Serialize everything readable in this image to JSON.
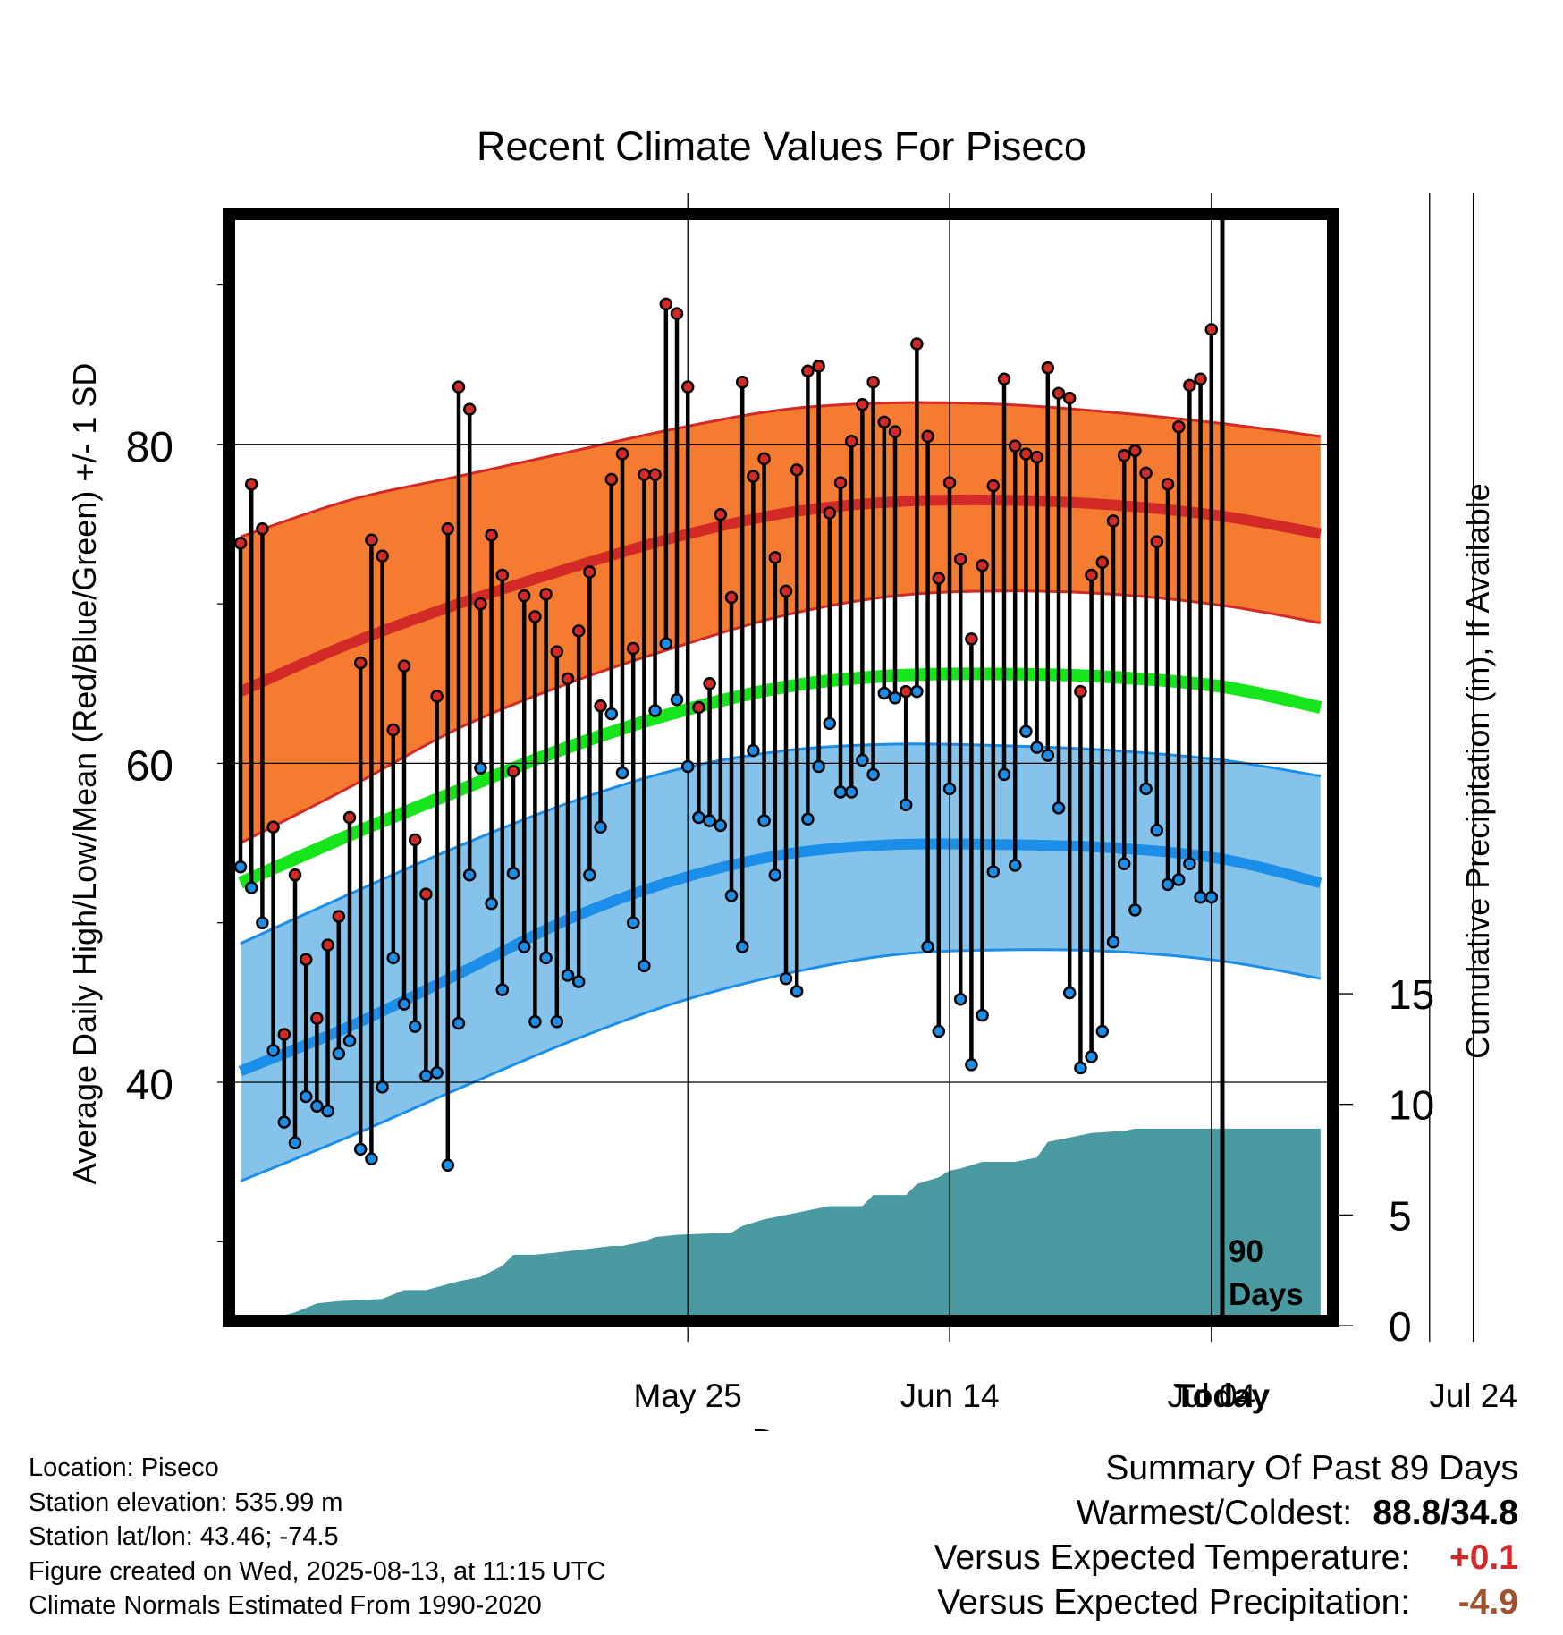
{
  "chart_data": {
    "type": "line",
    "title": "Recent Climate Values For Piseco",
    "xlabel": "Day",
    "ylabel": "Average Daily High/Low/Mean (Red/Blue/Green) +/- 1 SD",
    "y2label": "Cumulative Precipitation (in), If Available",
    "ylim": [
      26.5,
      96
    ],
    "yticks": [
      40,
      60,
      80
    ],
    "y2lim": [
      0,
      44
    ],
    "y2ticks": [
      0,
      5,
      10,
      15
    ],
    "xlim_days": [
      -90,
      9
    ],
    "x_tick_labels": [
      "May 25",
      "Jun 14",
      "Jul 04",
      "Jul 24",
      "Today"
    ],
    "today_marker_label": [
      "90",
      "Days"
    ],
    "grid": true,
    "colors": {
      "high_band": "#f47b30",
      "high_line": "#d42a27",
      "low_band": "#85c3ea",
      "low_line": "#1b8ee9",
      "mean_line": "#15e51a",
      "precip": "#4a9aa1",
      "frame": "#000000"
    },
    "normals": {
      "x_days": [
        -90,
        -80,
        -70,
        -60,
        -50,
        -40,
        -30,
        -20,
        -10,
        0,
        9
      ],
      "high_mean": [
        64.5,
        67.5,
        70.0,
        72.2,
        74.2,
        75.7,
        76.4,
        76.5,
        76.2,
        75.5,
        74.4
      ],
      "high_sd_upper": [
        74.2,
        76.5,
        78.0,
        79.5,
        81.0,
        82.2,
        82.6,
        82.5,
        82.0,
        81.3,
        80.5
      ],
      "high_sd_lower": [
        55.0,
        58.5,
        62.2,
        65.0,
        67.3,
        69.3,
        70.5,
        70.8,
        70.6,
        69.9,
        68.8
      ],
      "mean_line": [
        52.5,
        55.5,
        58.3,
        61.0,
        63.2,
        64.8,
        65.5,
        65.6,
        65.4,
        64.8,
        63.5
      ],
      "low_mean": [
        40.7,
        43.5,
        46.8,
        50.2,
        52.7,
        54.3,
        54.9,
        54.9,
        54.7,
        54.0,
        52.5
      ],
      "low_sd_upper": [
        48.7,
        51.8,
        54.8,
        57.5,
        59.6,
        60.8,
        61.2,
        61.1,
        60.8,
        60.2,
        59.2
      ],
      "low_sd_lower": [
        33.8,
        36.6,
        39.6,
        42.5,
        45.0,
        46.8,
        48.0,
        48.3,
        48.2,
        47.6,
        46.5
      ]
    },
    "daily_x_days": [
      -90,
      -89,
      -88,
      -87,
      -86,
      -85,
      -84,
      -83,
      -82,
      -81,
      -80,
      -79,
      -78,
      -77,
      -76,
      -75,
      -74,
      -73,
      -72,
      -71,
      -70,
      -69,
      -68,
      -67,
      -66,
      -65,
      -64,
      -63,
      -62,
      -61,
      -60,
      -59,
      -58,
      -57,
      -56,
      -55,
      -54,
      -53,
      -52,
      -51,
      -50,
      -49,
      -48,
      -47,
      -46,
      -45,
      -44,
      -43,
      -42,
      -41,
      -40,
      -39,
      -38,
      -37,
      -36,
      -35,
      -34,
      -33,
      -32,
      -31,
      -30,
      -29,
      -28,
      -27,
      -26,
      -25,
      -24,
      -23,
      -22,
      -21,
      -20,
      -19,
      -18,
      -17,
      -16,
      -15,
      -14,
      -13,
      -12,
      -11,
      -10,
      -9,
      -8,
      -7,
      -6,
      -5,
      -4,
      -3,
      -2,
      -1
    ],
    "daily_high": [
      73.8,
      77.5,
      74.7,
      56.0,
      43.0,
      53.0,
      47.7,
      44.0,
      48.6,
      50.4,
      56.6,
      66.3,
      74.0,
      73.0,
      62.1,
      66.1,
      55.2,
      51.8,
      64.2,
      74.7,
      83.6,
      82.2,
      70.0,
      74.3,
      71.8,
      59.5,
      70.5,
      69.2,
      70.6,
      67.0,
      65.3,
      68.3,
      72.0,
      63.6,
      77.8,
      79.4,
      67.2,
      78.1,
      78.1,
      88.8,
      88.2,
      83.6,
      63.5,
      65.0,
      75.6,
      70.4,
      83.9,
      78.0,
      79.1,
      72.9,
      70.8,
      78.4,
      84.6,
      84.9,
      75.7,
      77.6,
      80.2,
      82.5,
      83.9,
      81.4,
      80.8,
      64.5,
      86.3,
      80.5,
      71.6,
      77.6,
      72.8,
      67.8,
      72.4,
      77.4,
      84.1,
      79.9,
      79.4,
      79.2,
      84.8,
      83.2,
      82.9,
      64.5,
      71.8,
      72.6,
      75.2,
      79.3,
      79.6,
      78.2,
      73.9,
      77.5,
      81.1,
      83.7,
      84.1,
      87.2
    ],
    "daily_low": [
      53.5,
      52.2,
      50.0,
      42.0,
      37.5,
      36.2,
      39.1,
      38.5,
      38.2,
      41.8,
      42.6,
      35.8,
      35.2,
      39.7,
      47.8,
      44.9,
      43.5,
      40.4,
      40.6,
      34.8,
      43.7,
      53.0,
      59.7,
      51.2,
      45.8,
      53.1,
      48.5,
      43.8,
      47.8,
      43.8,
      46.7,
      46.3,
      53.0,
      56.0,
      63.1,
      59.4,
      50.0,
      47.3,
      63.3,
      67.5,
      64.0,
      59.8,
      56.6,
      56.4,
      56.1,
      51.7,
      48.5,
      60.8,
      56.4,
      53.0,
      46.5,
      45.7,
      56.5,
      59.8,
      62.5,
      58.2,
      58.2,
      60.2,
      59.3,
      64.4,
      64.1,
      57.4,
      64.5,
      48.5,
      43.2,
      58.4,
      45.2,
      41.1,
      44.2,
      53.2,
      59.3,
      53.6,
      62.0,
      61.0,
      60.5,
      57.2,
      45.6,
      40.9,
      41.6,
      43.2,
      48.8,
      53.7,
      50.8,
      58.4,
      55.8,
      52.4,
      52.7,
      53.7,
      51.6,
      51.6
    ],
    "precip_cumulative": {
      "x_days": [
        -90,
        -88,
        -85,
        -83,
        -81,
        -77,
        -75,
        -73,
        -70,
        -68,
        -66,
        -65,
        -63,
        -61,
        -56,
        -55,
        -53,
        -52,
        -50,
        -45,
        -44,
        -42,
        -39,
        -37,
        -36,
        -33,
        -32,
        -29,
        -28,
        -26,
        -25,
        -24,
        -22,
        -19,
        -17,
        -16,
        -13,
        -12,
        -9,
        -8,
        -1,
        9
      ],
      "values": [
        0.0,
        0.2,
        0.6,
        1.0,
        1.1,
        1.2,
        1.6,
        1.6,
        2.0,
        2.2,
        2.7,
        3.2,
        3.2,
        3.3,
        3.6,
        3.6,
        3.8,
        4.0,
        4.1,
        4.2,
        4.5,
        4.8,
        5.1,
        5.3,
        5.4,
        5.4,
        5.9,
        5.9,
        6.4,
        6.7,
        7.0,
        7.1,
        7.4,
        7.4,
        7.6,
        8.3,
        8.6,
        8.7,
        8.8,
        8.9,
        8.9,
        8.9
      ]
    }
  },
  "footer": {
    "location": "Location: Piseco",
    "elevation": "Station elevation: 535.99 m",
    "latlon": "Station lat/lon: 43.46; -74.5",
    "created": "Figure created on Wed, 2025-08-13, at 11:15 UTC",
    "normals": "Climate Normals Estimated From 1990-2020"
  },
  "summary": {
    "title": "Summary Of Past 89 Days",
    "warmest_label": "Warmest/Coldest:",
    "warmest_value": "88.8/34.8",
    "temp_label": "Versus Expected Temperature:",
    "temp_value": "+0.1",
    "temp_color": "#d42a27",
    "precip_label": "Versus Expected Precipitation:",
    "precip_value": "-4.9",
    "precip_color": "#a0522d"
  }
}
